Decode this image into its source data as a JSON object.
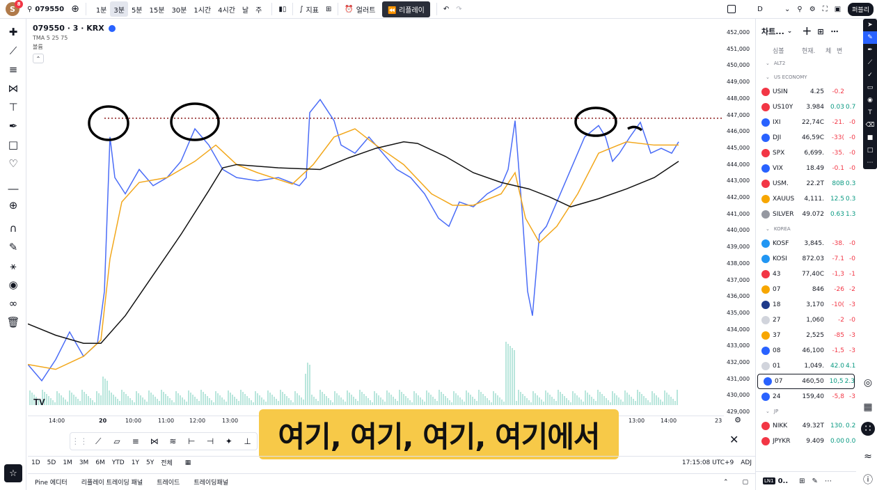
{
  "header": {
    "avatar_letter": "S",
    "notification_count": "8",
    "symbol": "079550",
    "intervals": [
      "1분",
      "3분",
      "5분",
      "15분",
      "30분",
      "1시간",
      "4시간",
      "날",
      "주"
    ],
    "active_interval": "3분",
    "indicators_label": "지표",
    "alert_label": "얼러트",
    "replay_label": "리플레이",
    "d_label": "D",
    "publish_label": "퍼블리"
  },
  "legend": {
    "title": "079550 · 3 · KRX",
    "tma": "TMA 5 25 75",
    "volume": "볼륨"
  },
  "price_axis": [
    "452,000",
    "451,000",
    "450,000",
    "449,000",
    "448,000",
    "447,000",
    "446,000",
    "445,000",
    "444,000",
    "443,000",
    "442,000",
    "441,000",
    "440,000",
    "439,000",
    "438,000",
    "437,000",
    "436,000",
    "435,000",
    "434,000",
    "433,000",
    "432,000",
    "431,000",
    "430,000",
    "429,000"
  ],
  "time_axis": [
    "14:00",
    "20",
    "10:00",
    "11:00",
    "12:00",
    "13:00",
    "13:00",
    "14:00",
    "23"
  ],
  "subtitle": "여기, 여기, 여기, 여기에서",
  "ranges": [
    "1D",
    "5D",
    "1M",
    "3M",
    "6M",
    "YTD",
    "1Y",
    "5Y",
    "전체"
  ],
  "clock": "17:15:08 UTC+9",
  "adj": "ADJ",
  "bottom_tabs": [
    "Pine 에디터",
    "리플레이 트레이딩 패널",
    "트레이드",
    "트레이딩패널"
  ],
  "watchlist": {
    "title": "차트...",
    "columns": [
      "심볼",
      "현재.",
      "체",
      "변"
    ],
    "sections": {
      "alt": "ALT2",
      "us": "US ECONOMY",
      "korea": "KOREA",
      "jp": "JP"
    },
    "us_rows": [
      {
        "sym": "USIN",
        "last": "4.25",
        "chg": "-0.2",
        "pct": "",
        "color": "#f23645"
      },
      {
        "sym": "US10Y",
        "last": "3.984",
        "chg": "0.03",
        "pct": "0.7",
        "color": "#f23645"
      },
      {
        "sym": "IXI",
        "last": "22,74C",
        "chg": "-21.",
        "pct": "-0",
        "color": "#2962ff"
      },
      {
        "sym": "DJI",
        "last": "46,59C",
        "chg": "-33(",
        "pct": "-0",
        "color": "#2962ff"
      },
      {
        "sym": "SPX",
        "last": "6,699.",
        "chg": "-35.",
        "pct": "-0",
        "color": "#f23645"
      },
      {
        "sym": "VIX",
        "last": "18.49",
        "chg": "-0.1",
        "pct": "-0",
        "color": "#2962ff"
      },
      {
        "sym": "USM.",
        "last": "22.2T",
        "chg": "80B",
        "pct": "0.3",
        "color": "#f23645"
      },
      {
        "sym": "XAUUS",
        "last": "4,111.",
        "chg": "12.5",
        "pct": "0.3",
        "color": "#f7a600"
      },
      {
        "sym": "SILVER",
        "last": "49.072",
        "chg": "0.63",
        "pct": "1.3",
        "color": "#9598a1"
      }
    ],
    "kr_rows": [
      {
        "sym": "KOSF",
        "last": "3,845.",
        "chg": "-38.",
        "pct": "-0",
        "color": "#2196f3"
      },
      {
        "sym": "KOSI",
        "last": "872.03",
        "chg": "-7.1",
        "pct": "-0",
        "color": "#2196f3"
      },
      {
        "sym": "43",
        "last": "77,40C",
        "chg": "-1,3",
        "pct": "-1",
        "color": "#f23645"
      },
      {
        "sym": "07",
        "last": "846",
        "chg": "-26",
        "pct": "-2",
        "color": "#f7a600"
      },
      {
        "sym": "18",
        "last": "3,170",
        "chg": "-10(",
        "pct": "-3",
        "color": "#1e3a8a"
      },
      {
        "sym": "27",
        "last": "1,060",
        "chg": "-2",
        "pct": "-0",
        "color": "#d1d4dc"
      },
      {
        "sym": "37",
        "last": "2,525",
        "chg": "-85",
        "pct": "-3",
        "color": "#f7a600"
      },
      {
        "sym": "08",
        "last": "46,100",
        "chg": "-1,5",
        "pct": "-3",
        "color": "#2962ff"
      },
      {
        "sym": "01",
        "last": "1,049.",
        "chg": "42.0",
        "pct": "4.1",
        "color": "#d1d4dc"
      },
      {
        "sym": "07",
        "last": "460,50",
        "chg": "10,5",
        "pct": "2.3",
        "color": "#2962ff"
      },
      {
        "sym": "24",
        "last": "159,40",
        "chg": "-5,8",
        "pct": "-3",
        "color": "#2962ff"
      }
    ],
    "jp_rows": [
      {
        "sym": "NIKK",
        "last": "49.32T",
        "chg": "130.",
        "pct": "0.2",
        "color": "#f23645"
      },
      {
        "sym": "JPYKR",
        "last": "9.409",
        "chg": "0.00",
        "pct": "0.0",
        "color": "#f23645"
      }
    ],
    "footer_symbol": "0.."
  },
  "colors": {
    "tma_fast": "#4a6cf7",
    "tma_mid": "#f2a71b",
    "tma_slow": "#111111",
    "resistance": "#8b1a1a",
    "subtitle_bg": "#f7c948"
  }
}
